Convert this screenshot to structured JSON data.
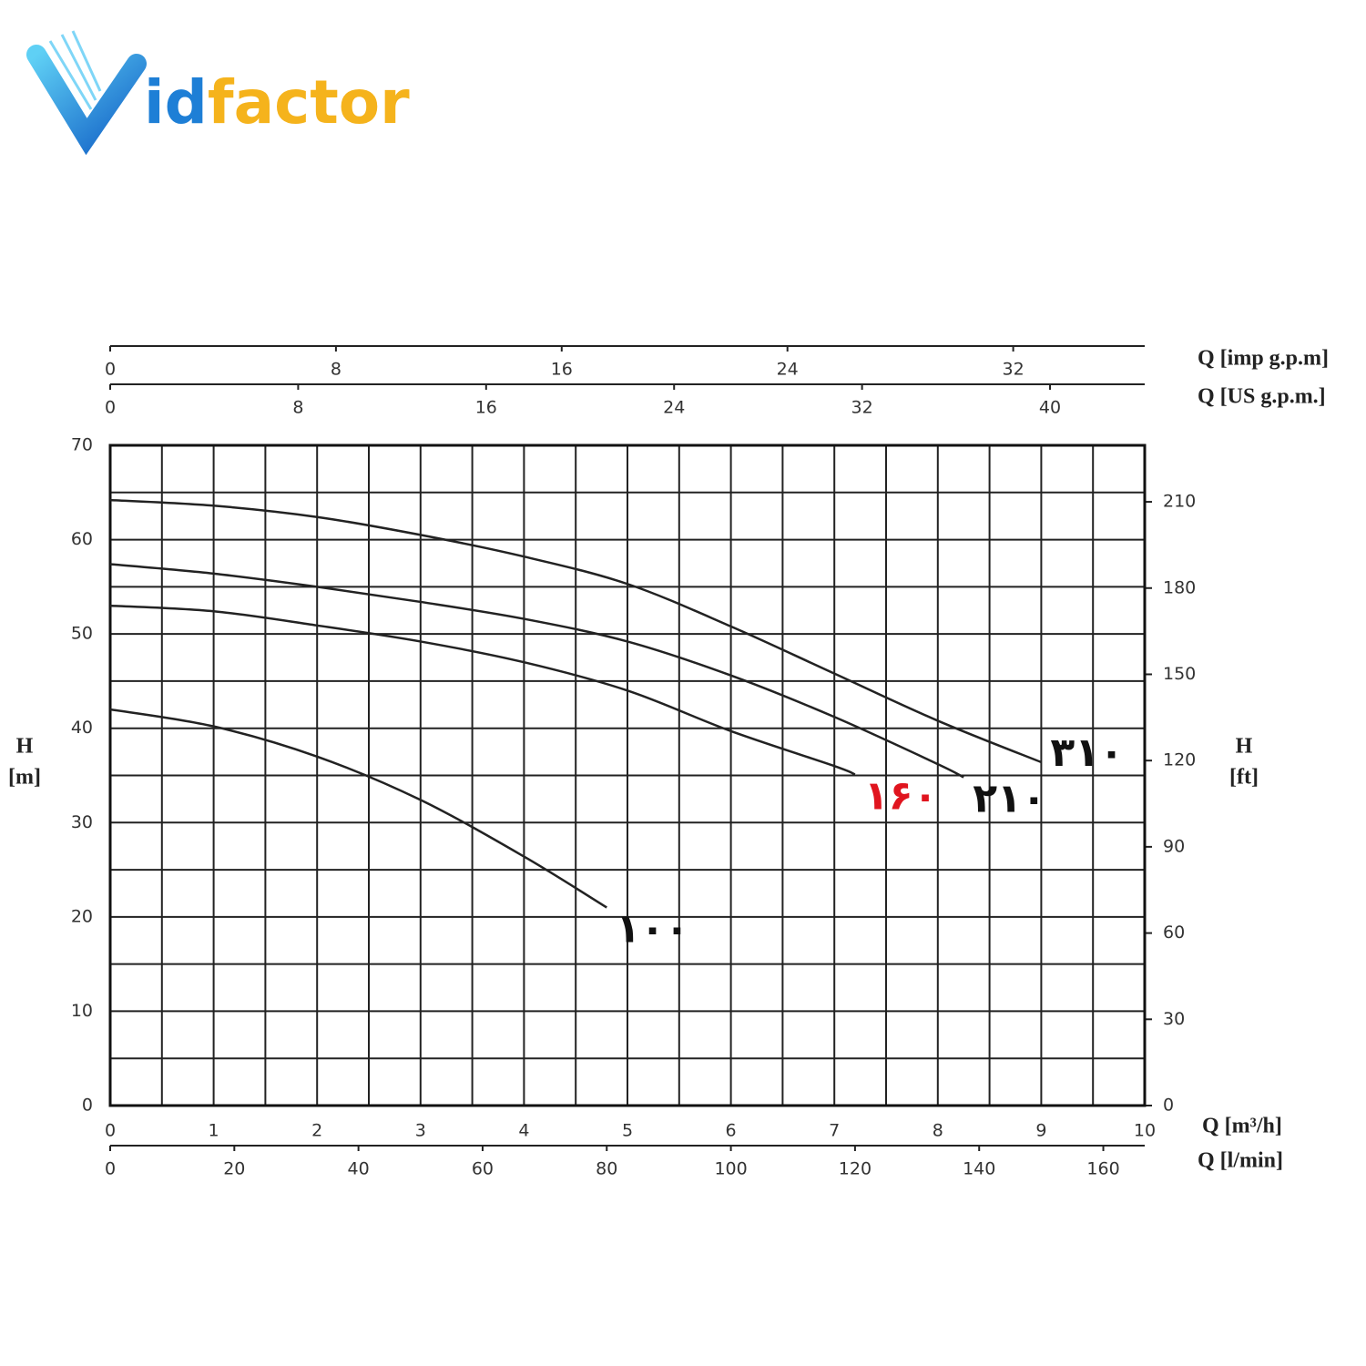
{
  "logo": {
    "first": "V",
    "blue": "id",
    "yellow": "factor"
  },
  "chart_data": {
    "type": "line",
    "x_label": "Q [m³/h]",
    "y_label_lines": [
      "H",
      "[m]"
    ],
    "y2_label_lines": [
      "H",
      "[ft]"
    ],
    "xlim": [
      0,
      10
    ],
    "xticks": [
      0,
      1,
      2,
      3,
      4,
      5,
      6,
      7,
      8,
      9,
      10
    ],
    "ylim": [
      0,
      70
    ],
    "yticks": [
      0,
      10,
      20,
      30,
      40,
      50,
      60,
      70
    ],
    "y2lim": [
      0,
      229.66
    ],
    "y2ticks": [
      0,
      30,
      60,
      90,
      120,
      150,
      180,
      210
    ],
    "grid": true,
    "extra_x_axes": [
      {
        "label": "Q [l/min]",
        "position": "bottom",
        "xlim": [
          0,
          166.67
        ],
        "xticks": [
          0,
          20,
          40,
          60,
          80,
          100,
          120,
          140,
          160
        ]
      },
      {
        "label": "Q [US g.p.m.]",
        "position": "top",
        "xlim": [
          0,
          44.03
        ],
        "xticks": [
          0,
          8,
          16,
          24,
          32,
          40
        ]
      },
      {
        "label": "Q [imp g.p.m]",
        "position": "top",
        "xlim": [
          0,
          36.66
        ],
        "xticks": [
          0,
          8,
          16,
          24,
          32
        ]
      }
    ],
    "series": [
      {
        "name": "۳۱۰",
        "color": "#222222",
        "label_color": "#111111",
        "x": [
          0,
          1,
          2,
          3,
          4,
          5,
          6,
          7,
          8,
          9
        ],
        "values": [
          64.2,
          63.6,
          62.4,
          60.5,
          58.2,
          55.3,
          50.8,
          45.8,
          40.8,
          36.4
        ]
      },
      {
        "name": "۲۱۰",
        "color": "#222222",
        "label_color": "#111111",
        "x": [
          0,
          1,
          2,
          3,
          4,
          5,
          6,
          7,
          8,
          8.25
        ],
        "values": [
          57.4,
          56.4,
          55,
          53.4,
          51.6,
          49.2,
          45.6,
          41.2,
          36.2,
          34.8
        ]
      },
      {
        "name": "۱۶۰",
        "color": "#222222",
        "label_color": "#e0141e",
        "x": [
          0,
          1,
          2,
          3,
          4,
          5,
          6,
          7,
          7.2
        ],
        "values": [
          53,
          52.4,
          50.9,
          49.2,
          47,
          44,
          39.7,
          36,
          35.1
        ]
      },
      {
        "name": "۱۰۰",
        "color": "#222222",
        "label_color": "#111111",
        "x": [
          0,
          1,
          2,
          3,
          4,
          4.8
        ],
        "values": [
          42,
          40.2,
          37,
          32.4,
          26.4,
          21
        ]
      }
    ]
  }
}
